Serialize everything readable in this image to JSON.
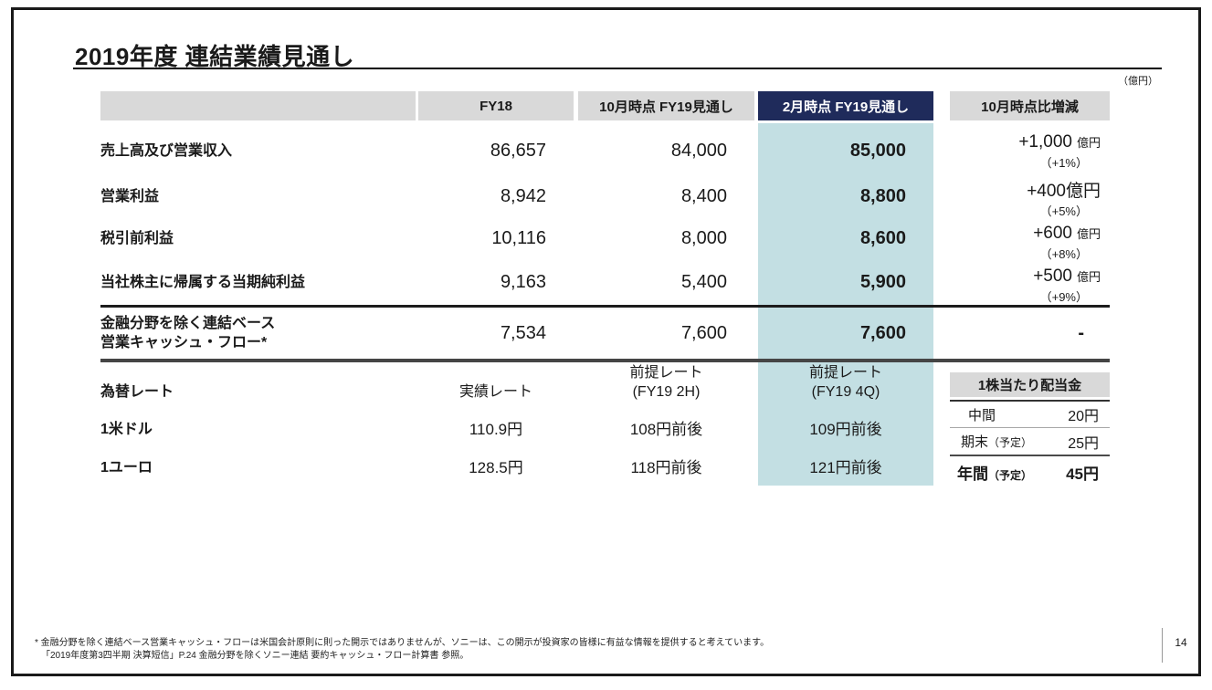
{
  "title": "2019年度 連結業績見通し",
  "unit_note": "（億円）",
  "page_number": "14",
  "colors": {
    "header_gray": "#d9d9d9",
    "highlight_navy": "#1f2b5b",
    "highlight_teal": "#c3dfe3"
  },
  "table": {
    "columns": {
      "fy18": "FY18",
      "oct_forecast": "10月時点 FY19見通し",
      "feb_forecast": "2月時点 FY19見通し",
      "change": "10月時点比増減"
    },
    "rows": [
      {
        "label": "売上高及び営業収入",
        "fy18": "86,657",
        "oct": "84,000",
        "feb": "85,000",
        "change_amount": "+1,000",
        "change_unit": "億円",
        "change_pct": "（+1%）"
      },
      {
        "label": "営業利益",
        "fy18": "8,942",
        "oct": "8,400",
        "feb": "8,800",
        "change_amount": "+400",
        "change_unit": "億円",
        "change_pct": "（+5%）"
      },
      {
        "label": "税引前利益",
        "fy18": "10,116",
        "oct": "8,000",
        "feb": "8,600",
        "change_amount": "+600",
        "change_unit": "億円",
        "change_pct": "（+8%）"
      },
      {
        "label": "当社株主に帰属する当期純利益",
        "fy18": "9,163",
        "oct": "5,400",
        "feb": "5,900",
        "change_amount": "+500",
        "change_unit": "億円",
        "change_pct": "（+9%）"
      }
    ],
    "cashflow_row": {
      "label_line1": "金融分野を除く連結ベース",
      "label_line2": "営業キャッシュ・フロー*",
      "fy18": "7,534",
      "oct": "7,600",
      "feb": "7,600",
      "change": "-"
    },
    "fx": {
      "section_label": "為替レート",
      "fy18_header": "実績レート",
      "oct_header_line1": "前提レート",
      "oct_header_line2": "(FY19 2H)",
      "feb_header_line1": "前提レート",
      "feb_header_line2": "(FY19 4Q)",
      "rows": [
        {
          "label": "1米ドル",
          "fy18": "110.9円",
          "oct": "108円前後",
          "feb": "109円前後"
        },
        {
          "label": "1ユーロ",
          "fy18": "128.5円",
          "oct": "118円前後",
          "feb": "121円前後"
        }
      ]
    }
  },
  "dividend": {
    "title": "1株当たり配当金",
    "rows": [
      {
        "label": "中間",
        "suffix": "",
        "value": "20円"
      },
      {
        "label": "期末",
        "suffix": "（予定）",
        "value": "25円"
      },
      {
        "label": "年間",
        "suffix": "（予定）",
        "value": "45円"
      }
    ]
  },
  "footnote": {
    "line1": "* 金融分野を除く連結ベース営業キャッシュ・フローは米国会計原則に則った開示ではありませんが、ソニーは、この開示が投資家の皆様に有益な情報を提供すると考えています。",
    "line2": "「2019年度第3四半期 決算短信」P.24 金融分野を除くソニー連結 要約キャッシュ・フロー計算書 参照。"
  }
}
